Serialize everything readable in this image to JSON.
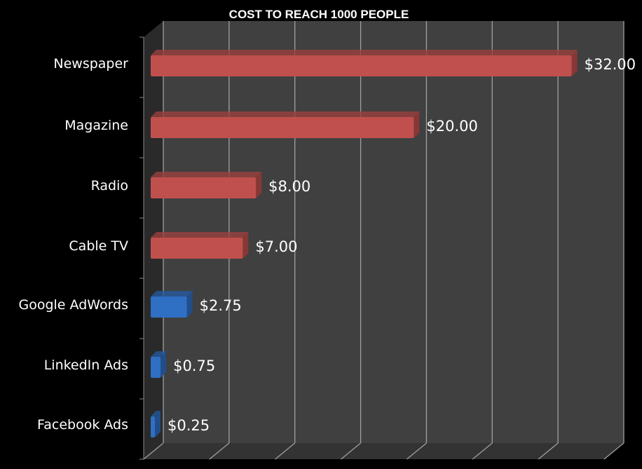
{
  "chart_data": {
    "type": "bar",
    "orientation": "horizontal",
    "style": "3d",
    "title": "COST TO REACH 1000 PEOPLE",
    "categories": [
      "Newspaper",
      "Magazine",
      "Radio",
      "Cable TV",
      "Google AdWords",
      "LinkedIn Ads",
      "Facebook Ads"
    ],
    "values": [
      32,
      20,
      8,
      7,
      2.75,
      0.75,
      0.25
    ],
    "data_labels": [
      "$32.00",
      "$20.00",
      "$8.00",
      "$7.00",
      "$2.75",
      "$0.75",
      "$0.25"
    ],
    "bar_colors": [
      "#c0504d",
      "#c0504d",
      "#c0504d",
      "#c0504d",
      "#2f6fc4",
      "#2f6fc4",
      "#2f6fc4"
    ],
    "xlim": [
      0,
      35
    ],
    "x_tick_step": 5,
    "x_tick_labels_shown": false,
    "grid": true,
    "legend": "none",
    "colors": {
      "background": "#000000",
      "wall": "#404040",
      "floor": "#333333",
      "grid": "#a0a0a0",
      "text": "#ffffff"
    }
  }
}
